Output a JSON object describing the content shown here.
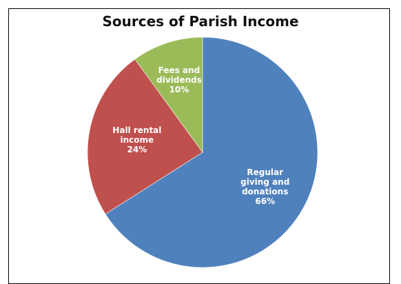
{
  "chart_data": {
    "type": "pie",
    "title": "Sources of Parish Income",
    "slices": [
      {
        "label": [
          "Regular",
          "giving and",
          "donations"
        ],
        "value": 66,
        "display": "66%",
        "color": "#4F81BD"
      },
      {
        "label": [
          "Hall rental",
          "income"
        ],
        "value": 24,
        "display": "24%",
        "color": "#C0504D"
      },
      {
        "label": [
          "Fees and",
          "dividends"
        ],
        "value": 10,
        "display": "10%",
        "color": "#9BBB59"
      }
    ]
  }
}
